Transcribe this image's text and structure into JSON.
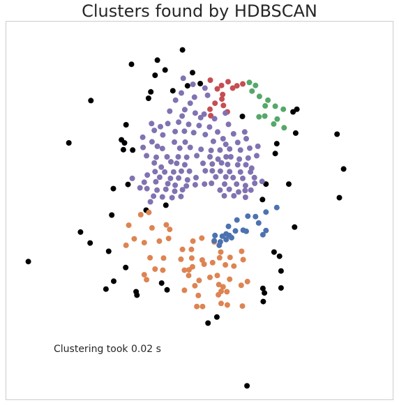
{
  "chart_data": {
    "type": "scatter",
    "title": "Clusters found by HDBSCAN",
    "annotation": "Clustering took 0.02 s",
    "xlim": [
      0,
      100
    ],
    "ylim": [
      0,
      100
    ],
    "grid": false,
    "axes_visible": false,
    "series": [
      {
        "color": "#000000",
        "points": [
          [
            45.6,
            92.5
          ],
          [
            39.1,
            89.8
          ],
          [
            32.4,
            88.7
          ],
          [
            41.1,
            87.2
          ],
          [
            38.5,
            85.8
          ],
          [
            48.2,
            86.5
          ],
          [
            50.2,
            83.6
          ],
          [
            46.9,
            83.0
          ],
          [
            37.4,
            81.4
          ],
          [
            36.8,
            79.7
          ],
          [
            43.1,
            81.7
          ],
          [
            21.9,
            79.1
          ],
          [
            75.2,
            76.8
          ],
          [
            74.2,
            76.1
          ],
          [
            61.1,
            74.9
          ],
          [
            31.0,
            72.7
          ],
          [
            74.9,
            70.5
          ],
          [
            85.6,
            70.2
          ],
          [
            16.2,
            67.9
          ],
          [
            29.8,
            68.7
          ],
          [
            30.6,
            67.9
          ],
          [
            32.7,
            66.0
          ],
          [
            30.3,
            66.1
          ],
          [
            70.0,
            67.7
          ],
          [
            69.6,
            65.1
          ],
          [
            87.3,
            61.0
          ],
          [
            31.5,
            56.9
          ],
          [
            27.7,
            55.8
          ],
          [
            67.2,
            57.0
          ],
          [
            73.1,
            57.0
          ],
          [
            86.2,
            53.4
          ],
          [
            41.3,
            51.4
          ],
          [
            36.2,
            50.1
          ],
          [
            27.3,
            48.8
          ],
          [
            66.3,
            52.9
          ],
          [
            74.6,
            45.6
          ],
          [
            19.2,
            44.3
          ],
          [
            21.7,
            41.4
          ],
          [
            26.5,
            39.2
          ],
          [
            69.3,
            39.0
          ],
          [
            70.7,
            37.9
          ],
          [
            5.7,
            36.5
          ],
          [
            30.9,
            34.9
          ],
          [
            71.1,
            34.0
          ],
          [
            27.8,
            31.3
          ],
          [
            40.2,
            30.8
          ],
          [
            25.8,
            29.2
          ],
          [
            66.4,
            29.4
          ],
          [
            33.6,
            28.5
          ],
          [
            41.6,
            29.0
          ],
          [
            71.1,
            29.5
          ],
          [
            66.8,
            28.2
          ],
          [
            33.8,
            27.6
          ],
          [
            66.5,
            25.9
          ],
          [
            54.5,
            21.8
          ],
          [
            52.2,
            20.2
          ],
          [
            62.3,
            3.6
          ]
        ]
      },
      {
        "color": "#c44e52",
        "points": [
          [
            52.8,
            84.5
          ],
          [
            57.4,
            84.1
          ],
          [
            61.2,
            83.5
          ],
          [
            55.7,
            83.1
          ],
          [
            59.7,
            83.0
          ],
          [
            58.6,
            82.4
          ],
          [
            54.6,
            82.2
          ],
          [
            56.0,
            80.7
          ],
          [
            55.8,
            79.5
          ],
          [
            54.0,
            78.4
          ],
          [
            56.2,
            77.8
          ],
          [
            52.7,
            76.8
          ],
          [
            57.2,
            76.1
          ],
          [
            52.9,
            75.1
          ]
        ]
      },
      {
        "color": "#55a868",
        "points": [
          [
            62.9,
            83.9
          ],
          [
            64.5,
            83.1
          ],
          [
            63.6,
            81.6
          ],
          [
            65.5,
            80.2
          ],
          [
            67.7,
            79.2
          ],
          [
            67.0,
            77.7
          ],
          [
            69.6,
            77.6
          ],
          [
            71.7,
            76.8
          ],
          [
            66.9,
            75.0
          ],
          [
            65.4,
            74.8
          ],
          [
            70.1,
            74.2
          ],
          [
            69.2,
            72.9
          ],
          [
            71.9,
            71.9
          ]
        ]
      },
      {
        "color": "#dd8452",
        "points": [
          [
            34.8,
            48.9
          ],
          [
            36.9,
            49.5
          ],
          [
            41.4,
            46.2
          ],
          [
            31.7,
            46.1
          ],
          [
            33.1,
            42.5
          ],
          [
            37.7,
            45.4
          ],
          [
            42.3,
            45.0
          ],
          [
            50.6,
            42.7
          ],
          [
            35.7,
            41.5
          ],
          [
            39.6,
            41.9
          ],
          [
            42.0,
            42.6
          ],
          [
            48.3,
            41.9
          ],
          [
            31.0,
            40.8
          ],
          [
            45.6,
            39.7
          ],
          [
            47.9,
            39.7
          ],
          [
            53.8,
            41.7
          ],
          [
            55.5,
            39.0
          ],
          [
            60.9,
            39.2
          ],
          [
            55.2,
            37.5
          ],
          [
            50.7,
            36.9
          ],
          [
            37.2,
            37.5
          ],
          [
            40.7,
            37.4
          ],
          [
            45.2,
            37.1
          ],
          [
            48.0,
            37.4
          ],
          [
            57.9,
            37.6
          ],
          [
            61.3,
            37.0
          ],
          [
            48.2,
            35.1
          ],
          [
            38.5,
            34.5
          ],
          [
            35.7,
            33.0
          ],
          [
            40.5,
            34.2
          ],
          [
            46.1,
            34.2
          ],
          [
            47.3,
            34.3
          ],
          [
            51.2,
            35.8
          ],
          [
            53.4,
            36.2
          ],
          [
            56.7,
            35.6
          ],
          [
            58.9,
            35.3
          ],
          [
            47.2,
            32.8
          ],
          [
            49.9,
            31.5
          ],
          [
            52.7,
            32.3
          ],
          [
            54.6,
            32.8
          ],
          [
            36.3,
            31.7
          ],
          [
            55.0,
            30.4
          ],
          [
            57.8,
            31.8
          ],
          [
            62.4,
            31.2
          ],
          [
            60.8,
            30.2
          ],
          [
            48.8,
            30.1
          ],
          [
            56.1,
            29.8
          ],
          [
            55.6,
            28.6
          ],
          [
            46.1,
            28.9
          ],
          [
            54.9,
            27.7
          ],
          [
            57.1,
            28.5
          ],
          [
            49.7,
            27.5
          ],
          [
            49.3,
            24.6
          ],
          [
            50.8,
            24.6
          ],
          [
            55.6,
            25.4
          ],
          [
            57.2,
            25.0
          ],
          [
            61.1,
            24.7
          ]
        ]
      },
      {
        "color": "#4c72b0",
        "points": [
          [
            70.0,
            50.8
          ],
          [
            67.2,
            49.6
          ],
          [
            59.7,
            47.5
          ],
          [
            62.5,
            48.5
          ],
          [
            64.5,
            48.4
          ],
          [
            65.3,
            46.7
          ],
          [
            57.5,
            45.8
          ],
          [
            67.2,
            44.7
          ],
          [
            61.3,
            44.8
          ],
          [
            62.1,
            44.5
          ],
          [
            59.3,
            44.6
          ],
          [
            56.9,
            43.8
          ],
          [
            57.7,
            43.4
          ],
          [
            55.9,
            43.2
          ],
          [
            54.0,
            43.4
          ],
          [
            58.3,
            42.8
          ],
          [
            56.9,
            42.3
          ],
          [
            55.4,
            41.7
          ],
          [
            53.8,
            42.0
          ],
          [
            55.1,
            40.8
          ],
          [
            66.4,
            43.6
          ]
        ]
      },
      {
        "color": "#8172b2",
        "points": [
          [
            45.8,
            85.0
          ],
          [
            48.3,
            83.4
          ],
          [
            51.4,
            82.4
          ],
          [
            45.3,
            81.1
          ],
          [
            43.8,
            79.2
          ],
          [
            47.6,
            78.4
          ],
          [
            48.7,
            80.0
          ],
          [
            52.1,
            80.5
          ],
          [
            46.2,
            76.7
          ],
          [
            48.9,
            75.8
          ],
          [
            51.2,
            75.5
          ],
          [
            42.3,
            76.3
          ],
          [
            45.5,
            75.0
          ],
          [
            50.3,
            74.6
          ],
          [
            53.9,
            74.3
          ],
          [
            56.7,
            75.8
          ],
          [
            41.8,
            73.0
          ],
          [
            39.9,
            72.2
          ],
          [
            37.6,
            73.0
          ],
          [
            44.6,
            73.4
          ],
          [
            47.2,
            72.8
          ],
          [
            49.9,
            72.5
          ],
          [
            52.6,
            72.1
          ],
          [
            57.5,
            72.8
          ],
          [
            38.3,
            71.2
          ],
          [
            40.5,
            70.0
          ],
          [
            43.7,
            70.9
          ],
          [
            46.1,
            71.0
          ],
          [
            48.5,
            70.6
          ],
          [
            51.5,
            70.1
          ],
          [
            54.7,
            70.8
          ],
          [
            56.1,
            69.0
          ],
          [
            58.8,
            70.3
          ],
          [
            61.7,
            70.8
          ],
          [
            35.3,
            69.4
          ],
          [
            37.7,
            68.2
          ],
          [
            43.5,
            68.1
          ],
          [
            46.3,
            68.1
          ],
          [
            53.6,
            68.3
          ],
          [
            56.8,
            67.5
          ],
          [
            59.9,
            68.0
          ],
          [
            62.1,
            69.0
          ],
          [
            35.4,
            66.7
          ],
          [
            39.1,
            67.0
          ],
          [
            40.4,
            66.4
          ],
          [
            44.9,
            66.5
          ],
          [
            47.6,
            66.7
          ],
          [
            50.4,
            66.2
          ],
          [
            53.0,
            65.9
          ],
          [
            55.3,
            66.0
          ],
          [
            57.8,
            66.3
          ],
          [
            60.6,
            66.0
          ],
          [
            63.0,
            66.5
          ],
          [
            65.1,
            67.0
          ],
          [
            36.3,
            64.5
          ],
          [
            38.8,
            64.1
          ],
          [
            41.6,
            64.2
          ],
          [
            44.5,
            64.2
          ],
          [
            46.7,
            64.1
          ],
          [
            49.3,
            64.5
          ],
          [
            52.7,
            64.2
          ],
          [
            54.8,
            63.6
          ],
          [
            56.9,
            64.2
          ],
          [
            58.1,
            64.2
          ],
          [
            60.3,
            63.6
          ],
          [
            62.6,
            63.9
          ],
          [
            64.8,
            64.5
          ],
          [
            38.3,
            62.6
          ],
          [
            40.1,
            61.5
          ],
          [
            42.6,
            62.9
          ],
          [
            44.1,
            62.5
          ],
          [
            46.2,
            62.1
          ],
          [
            50.9,
            62.5
          ],
          [
            53.3,
            62.3
          ],
          [
            55.7,
            62.6
          ],
          [
            57.3,
            62.2
          ],
          [
            59.9,
            62.1
          ],
          [
            62.0,
            62.1
          ],
          [
            63.5,
            61.2
          ],
          [
            38.5,
            60.3
          ],
          [
            41.0,
            60.2
          ],
          [
            43.3,
            60.2
          ],
          [
            45.3,
            60.4
          ],
          [
            47.4,
            60.4
          ],
          [
            51.5,
            60.5
          ],
          [
            53.3,
            60.5
          ],
          [
            55.4,
            60.4
          ],
          [
            57.8,
            60.3
          ],
          [
            60.6,
            60.2
          ],
          [
            63.2,
            60.2
          ],
          [
            36.5,
            59.4
          ],
          [
            39.7,
            58.8
          ],
          [
            42.5,
            58.5
          ],
          [
            44.6,
            58.6
          ],
          [
            46.9,
            58.1
          ],
          [
            49.1,
            58.7
          ],
          [
            54.2,
            58.9
          ],
          [
            56.8,
            58.9
          ],
          [
            58.7,
            58.7
          ],
          [
            61.2,
            58.5
          ],
          [
            64.2,
            58.7
          ],
          [
            32.6,
            58.5
          ],
          [
            35.7,
            57.5
          ],
          [
            38.7,
            57.6
          ],
          [
            41.8,
            57.1
          ],
          [
            43.7,
            56.7
          ],
          [
            46.6,
            56.5
          ],
          [
            48.9,
            56.8
          ],
          [
            51.3,
            57.0
          ],
          [
            53.1,
            57.2
          ],
          [
            56.5,
            57.0
          ],
          [
            59.6,
            57.0
          ],
          [
            61.9,
            56.6
          ],
          [
            64.3,
            57.2
          ],
          [
            66.2,
            57.7
          ],
          [
            34.6,
            56.0
          ],
          [
            36.4,
            55.8
          ],
          [
            39.0,
            55.4
          ],
          [
            41.3,
            55.6
          ],
          [
            43.6,
            55.1
          ],
          [
            45.6,
            55.5
          ],
          [
            55.3,
            55.4
          ],
          [
            57.7,
            55.6
          ],
          [
            60.1,
            54.9
          ],
          [
            61.8,
            55.3
          ],
          [
            63.3,
            55.4
          ],
          [
            38.1,
            53.8
          ],
          [
            40.4,
            53.6
          ],
          [
            42.9,
            53.4
          ],
          [
            45.2,
            53.7
          ],
          [
            56.4,
            53.9
          ],
          [
            58.9,
            53.9
          ],
          [
            61.9,
            53.5
          ],
          [
            37.3,
            52.3
          ]
        ]
      }
    ]
  }
}
